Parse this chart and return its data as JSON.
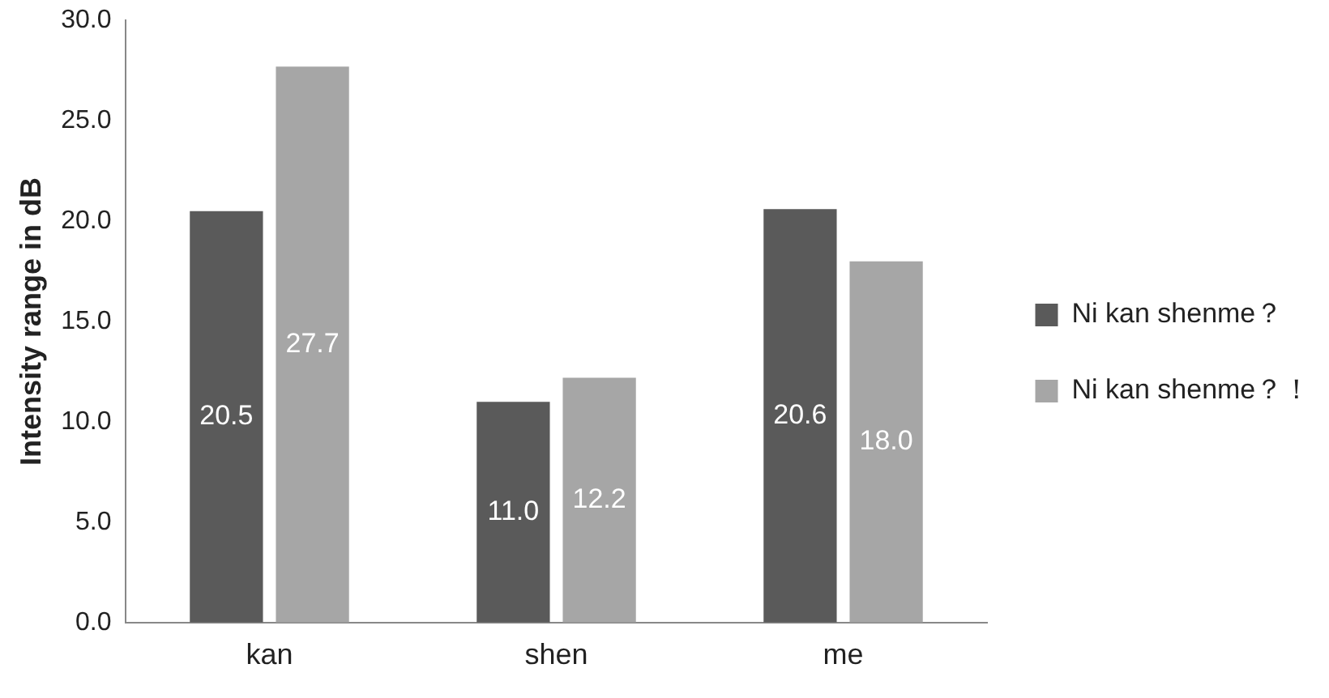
{
  "chart_data": {
    "type": "bar",
    "ylabel": "Intensity range in dB",
    "categories": [
      "kan",
      "shen",
      "me"
    ],
    "series": [
      {
        "name": "Ni kan shenme？",
        "color": "#5a5a5a",
        "values": [
          20.5,
          11.0,
          20.6
        ],
        "value_labels": [
          "20.5",
          "11.0",
          "20.6"
        ]
      },
      {
        "name": "Ni kan shenme？！",
        "color": "#a6a6a6",
        "values": [
          27.7,
          12.2,
          18.0
        ],
        "value_labels": [
          "27.7",
          "12.2",
          "18.0"
        ]
      }
    ],
    "ylim": [
      0,
      30
    ],
    "yticks": [
      {
        "value": 0,
        "label": "0.0"
      },
      {
        "value": 5,
        "label": "5.0"
      },
      {
        "value": 10,
        "label": "10.0"
      },
      {
        "value": 15,
        "label": "15.0"
      },
      {
        "value": 20,
        "label": "20.0"
      },
      {
        "value": 25,
        "label": "25.0"
      },
      {
        "value": 30,
        "label": "30.0"
      }
    ],
    "legend": "right",
    "grid": false
  }
}
